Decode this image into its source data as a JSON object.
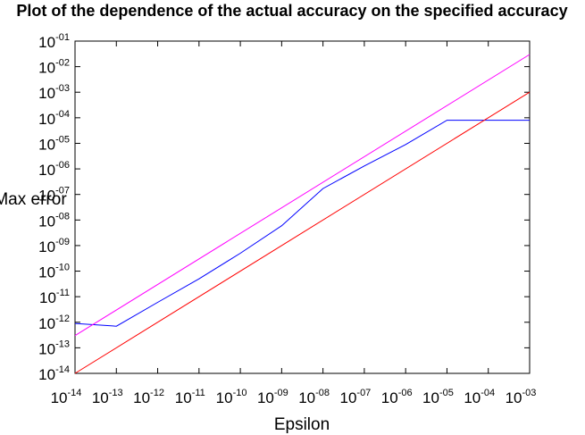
{
  "chart_data": {
    "type": "line",
    "title": "Plot of the dependence of the actual accuracy on the specified accuracy",
    "xlabel": "Epsilon",
    "ylabel": "Max error",
    "x_scale": "log",
    "y_scale": "log",
    "xlim": [
      1e-14,
      0.001
    ],
    "ylim": [
      1e-14,
      0.1
    ],
    "x_ticks": [
      "10^-14",
      "10^-13",
      "10^-12",
      "10^-11",
      "10^-10",
      "10^-09",
      "10^-08",
      "10^-07",
      "10^-06",
      "10^-05",
      "10^-04",
      "10^-03"
    ],
    "y_ticks": [
      "10^-14",
      "10^-13",
      "10^-12",
      "10^-11",
      "10^-10",
      "10^-09",
      "10^-08",
      "10^-07",
      "10^-06",
      "10^-05",
      "10^-04",
      "10^-03",
      "10^-02",
      "10^-01"
    ],
    "grid": false,
    "legend": "none",
    "series": [
      {
        "color": "#0000ff",
        "x": [
          1e-14,
          1e-13,
          1e-12,
          1e-11,
          1e-10,
          1e-09,
          1e-08,
          1e-07,
          1e-06,
          1e-05,
          0.0001,
          0.001
        ],
        "y": [
          9e-13,
          7e-13,
          6e-12,
          5e-11,
          5e-10,
          6e-09,
          1.7e-07,
          1.3e-06,
          9e-06,
          8e-05,
          8e-05,
          8e-05
        ]
      },
      {
        "color": "#ff0000",
        "x": [
          1e-14,
          0.001
        ],
        "y": [
          1e-14,
          0.001
        ]
      },
      {
        "color": "#ff00ff",
        "x": [
          1e-14,
          0.001
        ],
        "y": [
          3e-13,
          0.03
        ]
      }
    ]
  }
}
